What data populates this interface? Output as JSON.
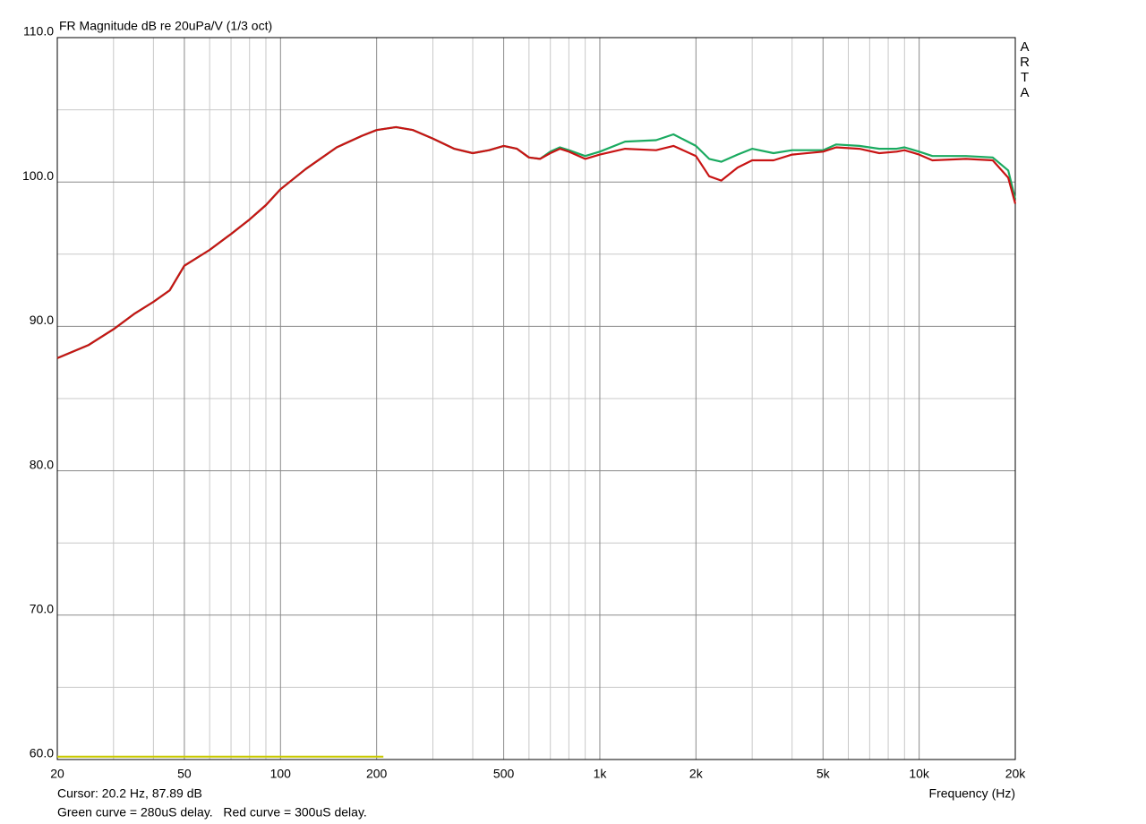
{
  "chart_data": {
    "type": "line",
    "title": "FR Magnitude dB re 20uPa/V (1/3 oct)",
    "brand": "ARTA",
    "xlabel": "Frequency (Hz)",
    "cursor": "Cursor: 20.2 Hz, 87.89 dB",
    "note": "Green curve = 280uS delay.   Red curve = 300uS delay.",
    "xscale": "log",
    "grid": true,
    "xlim": [
      20,
      20000
    ],
    "ylim": [
      60,
      110
    ],
    "xticks": [
      20,
      50,
      100,
      200,
      500,
      {
        "value": 1000,
        "label": "1k"
      },
      {
        "value": 2000,
        "label": "2k"
      },
      {
        "value": 5000,
        "label": "5k"
      },
      {
        "value": 10000,
        "label": "10k"
      },
      {
        "value": 20000,
        "label": "20k"
      }
    ],
    "xminorticks": [
      30,
      40,
      60,
      70,
      80,
      90,
      300,
      400,
      600,
      700,
      800,
      900,
      3000,
      4000,
      6000,
      7000,
      8000,
      9000
    ],
    "yticks": [
      {
        "value": 60,
        "label": "60.0"
      },
      {
        "value": 70,
        "label": "70.0"
      },
      {
        "value": 80,
        "label": "80.0"
      },
      {
        "value": 90,
        "label": "90.0"
      },
      {
        "value": 100,
        "label": "100.0"
      },
      {
        "value": 110,
        "label": "110.0"
      }
    ],
    "yminorticks": [
      65,
      75,
      85,
      95,
      105
    ],
    "x": [
      20,
      25,
      30,
      35,
      40,
      45,
      50,
      60,
      70,
      80,
      90,
      100,
      120,
      150,
      180,
      200,
      230,
      260,
      300,
      350,
      400,
      450,
      500,
      550,
      600,
      650,
      700,
      750,
      800,
      900,
      1000,
      1200,
      1500,
      1700,
      2000,
      2200,
      2400,
      2700,
      3000,
      3500,
      4000,
      5000,
      5500,
      6500,
      7500,
      8500,
      9000,
      10000,
      11000,
      14000,
      17000,
      19000,
      20000
    ],
    "series": [
      {
        "color": "#1aaa60",
        "values": [
          87.8,
          88.7,
          89.8,
          90.9,
          91.7,
          92.5,
          94.2,
          95.3,
          96.4,
          97.4,
          98.4,
          99.5,
          100.9,
          102.4,
          103.2,
          103.6,
          103.8,
          103.6,
          103.0,
          102.3,
          102.0,
          102.2,
          102.5,
          102.3,
          101.7,
          101.6,
          102.1,
          102.4,
          102.2,
          101.8,
          102.1,
          102.8,
          102.9,
          103.3,
          102.5,
          101.6,
          101.4,
          101.9,
          102.3,
          102.0,
          102.2,
          102.2,
          102.6,
          102.5,
          102.3,
          102.3,
          102.4,
          102.1,
          101.8,
          101.8,
          101.7,
          100.8,
          98.8
        ]
      },
      {
        "color": "#c81414",
        "values": [
          87.8,
          88.7,
          89.8,
          90.9,
          91.7,
          92.5,
          94.2,
          95.3,
          96.4,
          97.4,
          98.4,
          99.5,
          100.9,
          102.4,
          103.2,
          103.6,
          103.8,
          103.6,
          103.0,
          102.3,
          102.0,
          102.2,
          102.5,
          102.3,
          101.7,
          101.6,
          102.0,
          102.3,
          102.1,
          101.6,
          101.9,
          102.3,
          102.2,
          102.5,
          101.8,
          100.4,
          100.1,
          101.0,
          101.5,
          101.5,
          101.9,
          102.1,
          102.4,
          102.3,
          102.0,
          102.1,
          102.2,
          101.9,
          101.5,
          101.6,
          101.5,
          100.3,
          98.5
        ]
      },
      {
        "color": "#c8c800",
        "x": [
          20,
          210
        ],
        "values": [
          60.2,
          60.2
        ]
      }
    ]
  }
}
